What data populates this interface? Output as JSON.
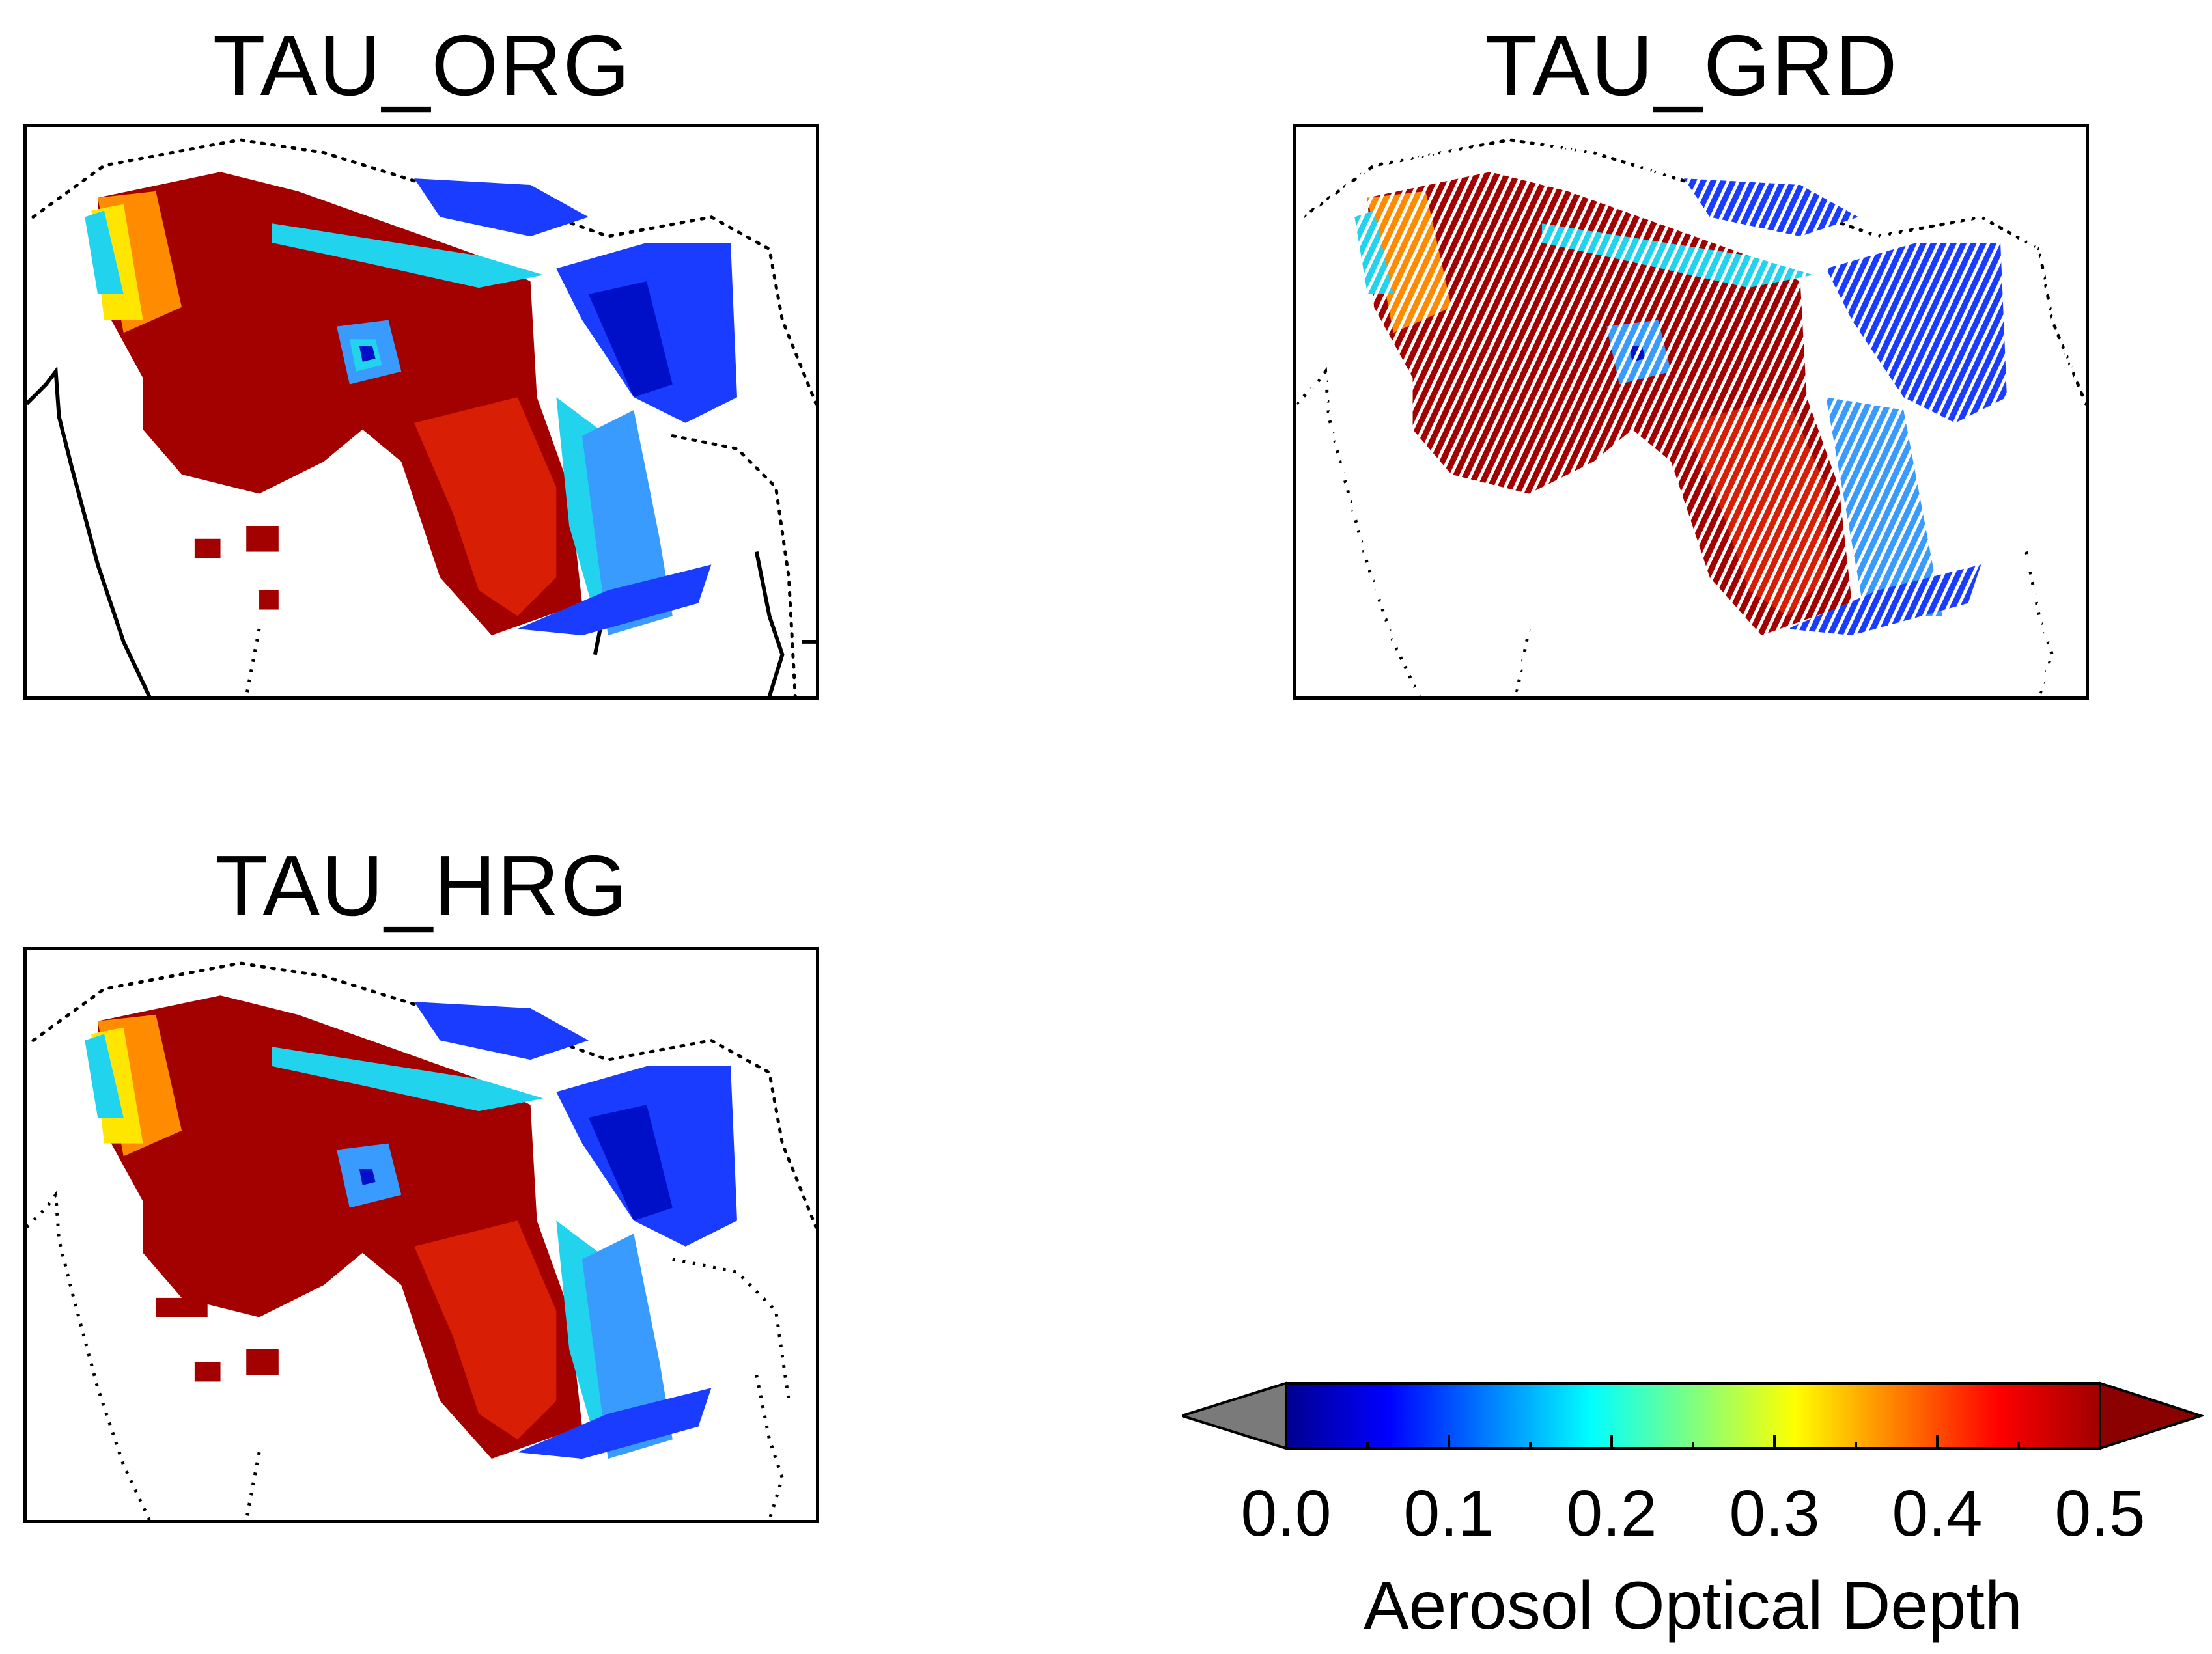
{
  "figure": {
    "panels": [
      {
        "id": "org",
        "title": "TAU_ORG"
      },
      {
        "id": "grd",
        "title": "TAU_GRD"
      },
      {
        "id": "hrg",
        "title": "TAU_HRG"
      }
    ],
    "colorbar": {
      "label": "Aerosol Optical Depth",
      "ticks": [
        "0.0",
        "0.1",
        "0.2",
        "0.3",
        "0.4",
        "0.5"
      ],
      "min": 0.0,
      "max": 0.5,
      "under_color": "#7a7a7a",
      "over_color": "#8b0000",
      "colors": [
        "#00008f",
        "#0000ff",
        "#007fff",
        "#00ffff",
        "#7fff7f",
        "#ffff00",
        "#ff7f00",
        "#ff0000",
        "#a00000"
      ]
    },
    "palette": {
      "dark_red": "#a30000",
      "red": "#d81e05",
      "orange": "#ff8c00",
      "yellow": "#ffe600",
      "cyan": "#22d3ee",
      "light_blue": "#3a9bff",
      "blue": "#1a3cff",
      "navy": "#0010c8"
    }
  }
}
